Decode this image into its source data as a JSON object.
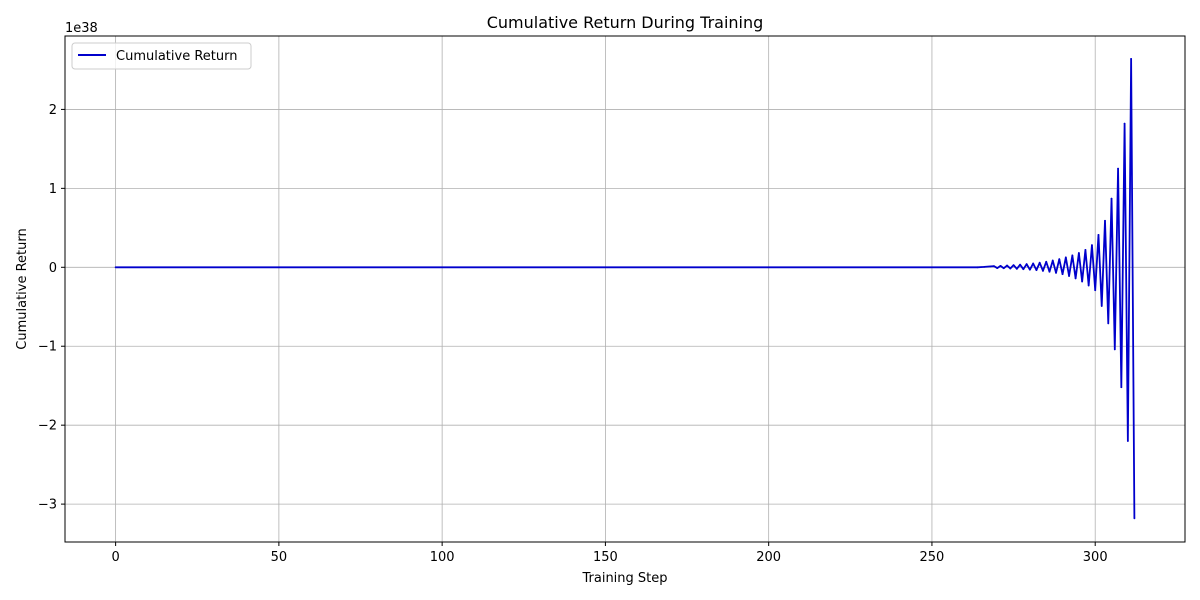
{
  "chart_data": {
    "type": "line",
    "title": "Cumulative Return During Training",
    "xlabel": "Training Step",
    "ylabel": "Cumulative Return",
    "y_offset_text": "1e38",
    "y_scale_factor": 1e+38,
    "xlim": [
      -15.5,
      327.5
    ],
    "ylim": [
      -3.48,
      2.93
    ],
    "x_ticks": [
      0,
      50,
      100,
      150,
      200,
      250,
      300
    ],
    "x_tick_labels": [
      "0",
      "50",
      "100",
      "150",
      "200",
      "250",
      "300"
    ],
    "y_ticks": [
      -3,
      -2,
      -1,
      0,
      1,
      2
    ],
    "y_tick_labels": [
      "−3",
      "−2",
      "−1",
      "0",
      "1",
      "2"
    ],
    "grid": true,
    "legend": "upper-left",
    "series": [
      {
        "name": "Cumulative Return",
        "color": "#0000cc",
        "x": [
          0,
          264,
          266,
          268,
          269,
          270,
          271,
          272,
          273,
          274,
          275,
          276,
          277,
          278,
          279,
          280,
          281,
          282,
          283,
          284,
          285,
          286,
          287,
          288,
          289,
          290,
          291,
          292,
          293,
          294,
          295,
          296,
          297,
          298,
          299,
          300,
          301,
          302,
          303,
          304,
          305,
          306,
          307,
          308,
          309,
          310,
          311,
          312
        ],
        "y": [
          0,
          0,
          0.005,
          0.012,
          0.015,
          -0.01,
          0.018,
          -0.012,
          0.022,
          -0.015,
          0.027,
          -0.019,
          0.033,
          -0.024,
          0.04,
          -0.03,
          0.048,
          -0.036,
          0.058,
          -0.045,
          0.07,
          -0.056,
          0.085,
          -0.07,
          0.103,
          -0.087,
          0.125,
          -0.11,
          0.15,
          -0.14,
          0.18,
          -0.18,
          0.22,
          -0.23,
          0.28,
          -0.29,
          0.41,
          -0.49,
          0.59,
          -0.71,
          0.87,
          -1.04,
          1.25,
          -1.52,
          1.82,
          -2.2,
          2.64,
          -3.18
        ]
      }
    ]
  }
}
